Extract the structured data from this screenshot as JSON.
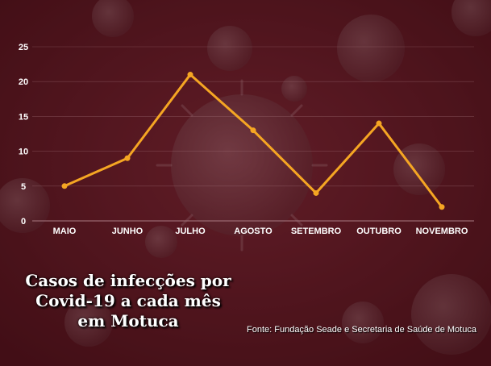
{
  "chart_data": {
    "type": "line",
    "title": "Casos de infecções por Covid-19 a cada mês em Motuca",
    "source": "Fonte: Fundação Seade e Secretaria de Saúde de Motuca",
    "categories": [
      "MAIO",
      "JUNHO",
      "JULHO",
      "AGOSTO",
      "SETEMBRO",
      "OUTUBRO",
      "NOVEMBRO"
    ],
    "series": [
      {
        "values": [
          5,
          9,
          21,
          13,
          4,
          14,
          2
        ],
        "color": "#f5a623"
      }
    ],
    "y_ticks": [
      "0",
      "5",
      "10",
      "15",
      "20",
      "25"
    ],
    "ylim": [
      0,
      25
    ],
    "grid": true,
    "xlabel": "",
    "ylabel": ""
  },
  "colors": {
    "background": "#5c1a22",
    "line": "#f5a623",
    "text": "#ffffff",
    "gridline": "#a07078"
  }
}
